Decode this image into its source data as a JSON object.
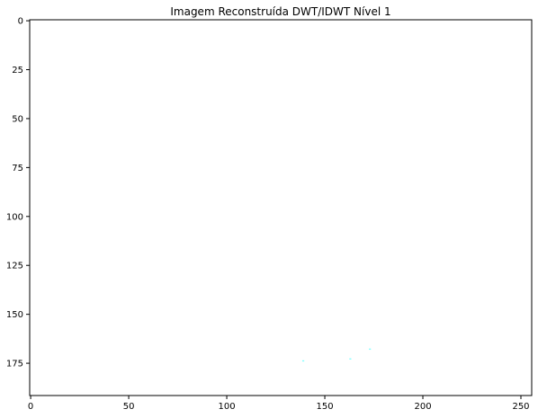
{
  "chart_data": {
    "type": "heatmap",
    "title": "Imagem Reconstruída DWT/IDWT Nível 1",
    "xlabel": "",
    "ylabel": "",
    "xlim": [
      -0.5,
      255.5
    ],
    "ylim": [
      191.5,
      -0.5
    ],
    "y_inverted": true,
    "grid": false,
    "x_ticks": [
      0,
      50,
      100,
      150,
      200,
      250
    ],
    "x_tick_labels": [
      "0",
      "50",
      "100",
      "150",
      "200",
      "250"
    ],
    "y_ticks": [
      0,
      25,
      50,
      75,
      100,
      125,
      150,
      175
    ],
    "y_tick_labels": [
      "0",
      "25",
      "50",
      "75",
      "100",
      "125",
      "150",
      "175"
    ],
    "background_color": "#ffffff",
    "marks": [
      {
        "x": 139,
        "y": 174,
        "color": "#7fffff"
      },
      {
        "x": 163,
        "y": 173,
        "color": "#7fffff"
      },
      {
        "x": 173,
        "y": 168,
        "color": "#7fffff"
      }
    ]
  }
}
